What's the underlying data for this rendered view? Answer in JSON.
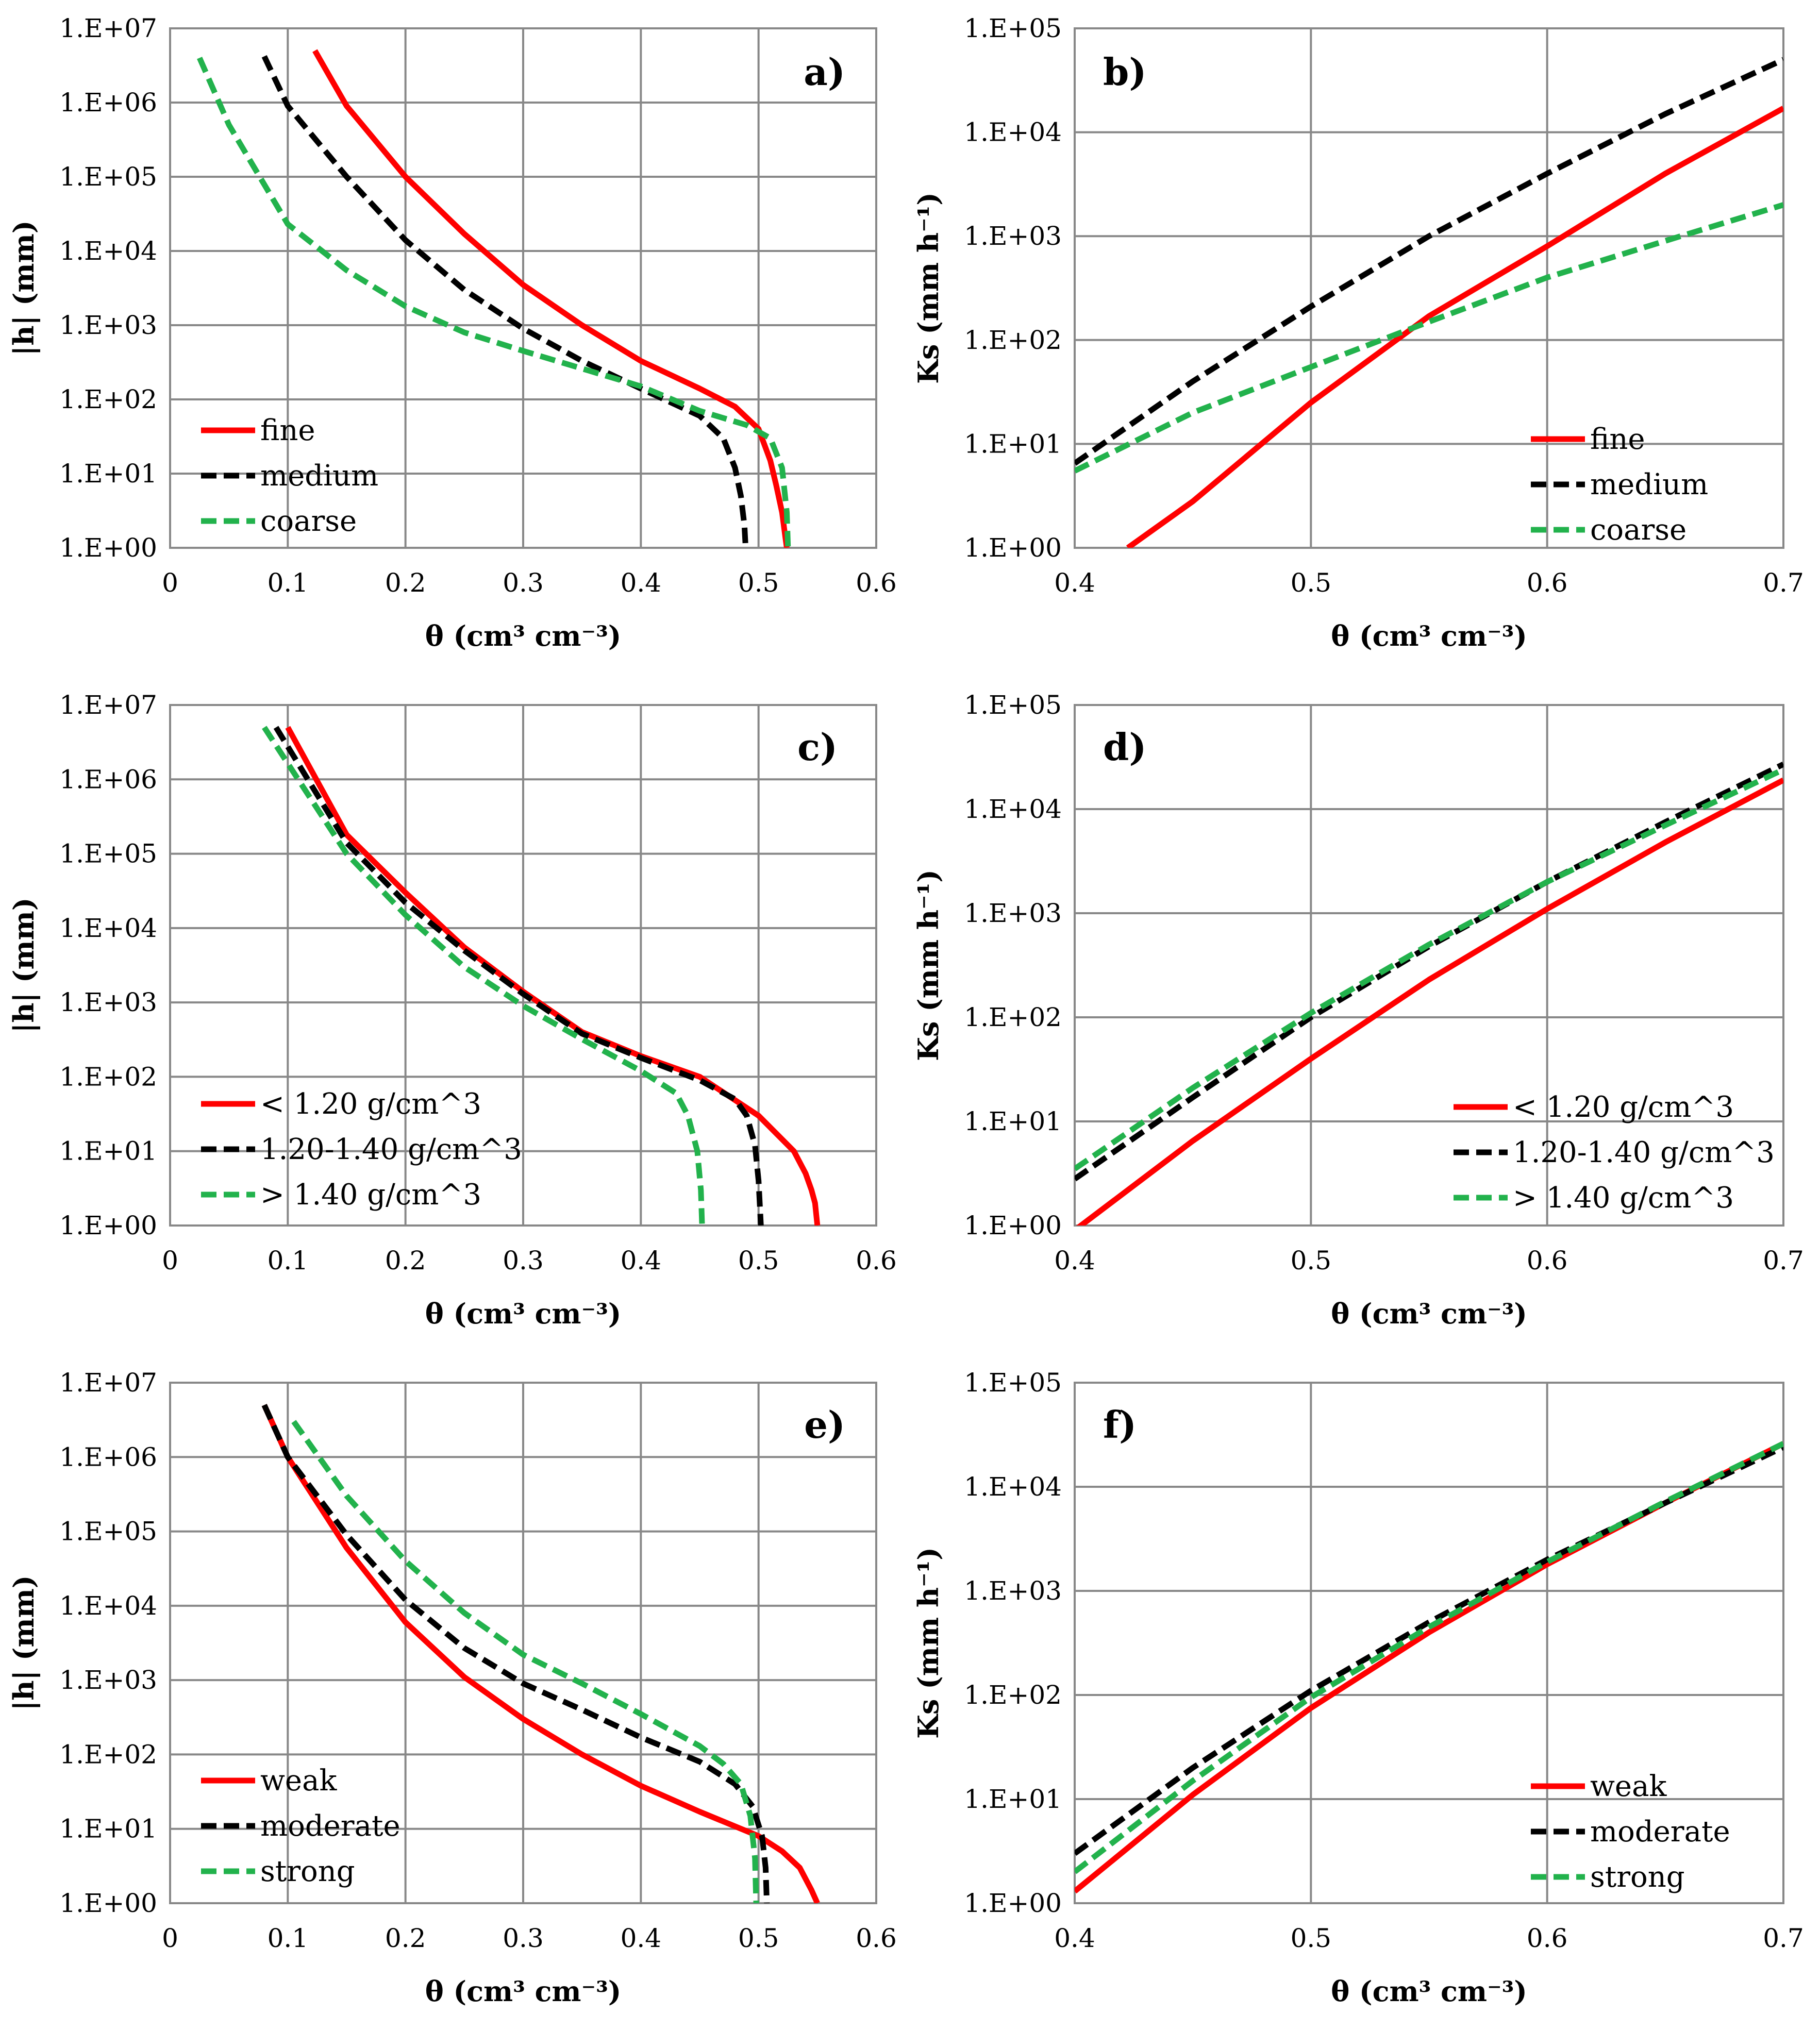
{
  "chart_data": [
    {
      "id": "a",
      "type": "line",
      "panel_label": "a)",
      "xlabel": "θ (cm³ cm⁻³)",
      "ylabel": "|h| (mm)",
      "xlim": [
        0,
        0.6
      ],
      "xticks": [
        "0",
        "0.1",
        "0.2",
        "0.3",
        "0.4",
        "0.5",
        "0.6"
      ],
      "ylim_log10": [
        0,
        7
      ],
      "yticks": [
        "1.E+00",
        "1.E+01",
        "1.E+02",
        "1.E+03",
        "1.E+04",
        "1.E+05",
        "1.E+06",
        "1.E+07"
      ],
      "legend_position": "bottom-left",
      "series": [
        {
          "name": "fine",
          "color": "#ff0000",
          "style": "solid",
          "theta": [
            0.123,
            0.15,
            0.2,
            0.25,
            0.3,
            0.35,
            0.4,
            0.45,
            0.48,
            0.5,
            0.51,
            0.515,
            0.52,
            0.523,
            0.524
          ],
          "h": [
            5000000,
            900000,
            100000,
            17000,
            3500,
            1000,
            330,
            140,
            80,
            40,
            15,
            7,
            3,
            1.3,
            1
          ]
        },
        {
          "name": "medium",
          "color": "#000000",
          "style": "dashed",
          "theta": [
            0.08,
            0.1,
            0.15,
            0.2,
            0.25,
            0.3,
            0.35,
            0.4,
            0.45,
            0.47,
            0.48,
            0.485,
            0.488,
            0.489
          ],
          "h": [
            4200000,
            900000,
            100000,
            14000,
            3000,
            900,
            330,
            140,
            60,
            30,
            12,
            5,
            2,
            1
          ]
        },
        {
          "name": "coarse",
          "color": "#22b24c",
          "style": "dashed",
          "theta": [
            0.025,
            0.05,
            0.1,
            0.15,
            0.2,
            0.25,
            0.3,
            0.35,
            0.4,
            0.45,
            0.49,
            0.51,
            0.52,
            0.524,
            0.525
          ],
          "h": [
            4000000,
            500000,
            23000,
            5500,
            1800,
            800,
            450,
            260,
            150,
            70,
            45,
            30,
            12,
            3,
            1
          ]
        }
      ]
    },
    {
      "id": "b",
      "type": "line",
      "panel_label": "b)",
      "xlabel": "θ (cm³ cm⁻³)",
      "ylabel": "Ks (mm h⁻¹)",
      "xlim": [
        0.4,
        0.7
      ],
      "xticks": [
        "0.4",
        "0.5",
        "0.6",
        "0.7"
      ],
      "ylim_log10": [
        0,
        5
      ],
      "yticks": [
        "1.E+00",
        "1.E+01",
        "1.E+02",
        "1.E+03",
        "1.E+04",
        "1.E+05"
      ],
      "legend_position": "bottom-right",
      "series": [
        {
          "name": "fine",
          "color": "#ff0000",
          "style": "solid",
          "theta": [
            0.4225,
            0.45,
            0.5,
            0.55,
            0.6,
            0.65,
            0.7
          ],
          "ks": [
            1,
            2.8,
            25,
            170,
            800,
            4000,
            17000
          ]
        },
        {
          "name": "medium",
          "color": "#000000",
          "style": "dashed",
          "theta": [
            0.4,
            0.45,
            0.5,
            0.55,
            0.6,
            0.65,
            0.7
          ],
          "ks": [
            6.5,
            40,
            210,
            1000,
            4000,
            15000,
            50000
          ]
        },
        {
          "name": "coarse",
          "color": "#22b24c",
          "style": "dashed",
          "theta": [
            0.4,
            0.45,
            0.5,
            0.55,
            0.6,
            0.65,
            0.7
          ],
          "ks": [
            5.5,
            20,
            55,
            150,
            400,
            900,
            2000
          ]
        }
      ]
    },
    {
      "id": "c",
      "type": "line",
      "panel_label": "c)",
      "xlabel": "θ (cm³ cm⁻³)",
      "ylabel": "|h| (mm)",
      "xlim": [
        0,
        0.6
      ],
      "xticks": [
        "0",
        "0.1",
        "0.2",
        "0.3",
        "0.4",
        "0.5",
        "0.6"
      ],
      "ylim_log10": [
        0,
        7
      ],
      "yticks": [
        "1.E+00",
        "1.E+01",
        "1.E+02",
        "1.E+03",
        "1.E+04",
        "1.E+05",
        "1.E+06",
        "1.E+07"
      ],
      "legend_position": "bottom-left",
      "series": [
        {
          "name": "< 1.20 g/cm^3",
          "color": "#ff0000",
          "style": "solid",
          "theta": [
            0.1,
            0.15,
            0.2,
            0.25,
            0.3,
            0.35,
            0.4,
            0.45,
            0.5,
            0.53,
            0.54,
            0.545,
            0.548,
            0.55
          ],
          "h": [
            5000000,
            180000,
            30000,
            5500,
            1400,
            400,
            190,
            100,
            30,
            10,
            5,
            3,
            2,
            1
          ]
        },
        {
          "name": "1.20-1.40 g/cm^3",
          "color": "#000000",
          "style": "dashed",
          "theta": [
            0.09,
            0.15,
            0.2,
            0.25,
            0.3,
            0.35,
            0.4,
            0.45,
            0.48,
            0.49,
            0.497,
            0.5,
            0.502
          ],
          "h": [
            5000000,
            140000,
            22000,
            5000,
            1300,
            380,
            180,
            90,
            50,
            30,
            12,
            4,
            1
          ]
        },
        {
          "name": "> 1.40 g/cm^3",
          "color": "#22b24c",
          "style": "dashed",
          "theta": [
            0.08,
            0.15,
            0.2,
            0.25,
            0.3,
            0.35,
            0.4,
            0.43,
            0.44,
            0.448,
            0.451,
            0.452
          ],
          "h": [
            5000000,
            100000,
            15000,
            3000,
            900,
            320,
            120,
            60,
            30,
            10,
            3,
            1
          ]
        }
      ]
    },
    {
      "id": "d",
      "type": "line",
      "panel_label": "d)",
      "xlabel": "θ (cm³ cm⁻³)",
      "ylabel": "Ks (mm h⁻¹)",
      "xlim": [
        0.4,
        0.7
      ],
      "xticks": [
        "0.4",
        "0.5",
        "0.6",
        "0.7"
      ],
      "ylim_log10": [
        0,
        5
      ],
      "yticks": [
        "1.E+00",
        "1.E+01",
        "1.E+02",
        "1.E+03",
        "1.E+04",
        "1.E+05"
      ],
      "legend_position": "bottom-right",
      "series": [
        {
          "name": "< 1.20 g/cm^3",
          "color": "#ff0000",
          "style": "solid",
          "theta": [
            0.4,
            0.45,
            0.5,
            0.55,
            0.6,
            0.65,
            0.7
          ],
          "ks": [
            0.9,
            6.5,
            40,
            230,
            1100,
            4800,
            19000
          ]
        },
        {
          "name": "1.20-1.40 g/cm^3",
          "color": "#000000",
          "style": "dashed",
          "theta": [
            0.4,
            0.45,
            0.5,
            0.55,
            0.6,
            0.65,
            0.7
          ],
          "ks": [
            2.8,
            17,
            100,
            480,
            2000,
            7500,
            27000
          ]
        },
        {
          "name": "> 1.40 g/cm^3",
          "color": "#22b24c",
          "style": "dashed",
          "theta": [
            0.4,
            0.45,
            0.5,
            0.55,
            0.6,
            0.65,
            0.7
          ],
          "ks": [
            3.5,
            21,
            110,
            500,
            2000,
            7000,
            24000
          ]
        }
      ]
    },
    {
      "id": "e",
      "type": "line",
      "panel_label": "e)",
      "xlabel": "θ (cm³ cm⁻³)",
      "ylabel": "|h| (mm)",
      "xlim": [
        0,
        0.6
      ],
      "xticks": [
        "0",
        "0.1",
        "0.2",
        "0.3",
        "0.4",
        "0.5",
        "0.6"
      ],
      "ylim_log10": [
        0,
        7
      ],
      "yticks": [
        "1.E+00",
        "1.E+01",
        "1.E+02",
        "1.E+03",
        "1.E+04",
        "1.E+05",
        "1.E+06",
        "1.E+07"
      ],
      "legend_position": "bottom-left",
      "series": [
        {
          "name": "weak",
          "color": "#ff0000",
          "style": "solid",
          "theta": [
            0.08,
            0.1,
            0.15,
            0.2,
            0.25,
            0.3,
            0.35,
            0.4,
            0.45,
            0.5,
            0.52,
            0.535,
            0.545,
            0.55
          ],
          "h": [
            5000000,
            1000000,
            60000,
            6000,
            1100,
            300,
            100,
            38,
            17,
            8,
            5,
            3,
            1.5,
            1
          ]
        },
        {
          "name": "moderate",
          "color": "#000000",
          "style": "dashed",
          "theta": [
            0.08,
            0.1,
            0.15,
            0.2,
            0.25,
            0.3,
            0.35,
            0.4,
            0.45,
            0.48,
            0.495,
            0.503,
            0.506,
            0.507
          ],
          "h": [
            5000000,
            1000000,
            90000,
            12000,
            2700,
            900,
            400,
            170,
            80,
            40,
            20,
            8,
            3,
            1
          ]
        },
        {
          "name": "strong",
          "color": "#22b24c",
          "style": "dashed",
          "theta": [
            0.105,
            0.15,
            0.2,
            0.25,
            0.3,
            0.35,
            0.4,
            0.45,
            0.47,
            0.485,
            0.493,
            0.497,
            0.498
          ],
          "h": [
            3000000,
            300000,
            40000,
            8000,
            2200,
            900,
            350,
            130,
            75,
            40,
            15,
            4,
            1
          ]
        }
      ]
    },
    {
      "id": "f",
      "type": "line",
      "panel_label": "f)",
      "xlabel": "θ (cm³ cm⁻³)",
      "ylabel": "Ks (mm h⁻¹)",
      "xlim": [
        0.4,
        0.7
      ],
      "xticks": [
        "0.4",
        "0.5",
        "0.6",
        "0.7"
      ],
      "ylim_log10": [
        0,
        5
      ],
      "yticks": [
        "1.E+00",
        "1.E+01",
        "1.E+02",
        "1.E+03",
        "1.E+04",
        "1.E+05"
      ],
      "legend_position": "bottom-right",
      "series": [
        {
          "name": "weak",
          "color": "#ff0000",
          "style": "solid",
          "theta": [
            0.4,
            0.45,
            0.5,
            0.55,
            0.6,
            0.65,
            0.7
          ],
          "ks": [
            1.3,
            11,
            75,
            400,
            1800,
            7000,
            26000
          ]
        },
        {
          "name": "moderate",
          "color": "#000000",
          "style": "dashed",
          "theta": [
            0.4,
            0.45,
            0.5,
            0.55,
            0.6,
            0.65,
            0.7
          ],
          "ks": [
            3,
            20,
            110,
            500,
            2000,
            7000,
            24000
          ]
        },
        {
          "name": "strong",
          "color": "#22b24c",
          "style": "dashed",
          "theta": [
            0.4,
            0.45,
            0.5,
            0.55,
            0.6,
            0.65,
            0.7
          ],
          "ks": [
            2,
            15,
            95,
            450,
            1900,
            7200,
            26000
          ]
        }
      ]
    }
  ]
}
